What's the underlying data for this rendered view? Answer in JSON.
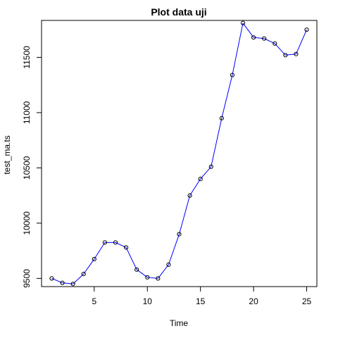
{
  "chart_data": {
    "type": "line",
    "title": "Plot data uji",
    "xlabel": "Time",
    "ylabel": "test_ma.ts",
    "xlim": [
      0.04,
      25.96
    ],
    "ylim": [
      9426,
      11834
    ],
    "x_ticks": [
      5,
      10,
      15,
      20,
      25
    ],
    "y_ticks": [
      9500,
      10000,
      10500,
      11000,
      11500
    ],
    "grid": false,
    "legend": "none",
    "series": [
      {
        "color": "#0000ff",
        "marker": "open-circle",
        "x": [
          1,
          2,
          3,
          4,
          5,
          6,
          7,
          8,
          9,
          10,
          11,
          12,
          13,
          14,
          15,
          16,
          17,
          18,
          19,
          20,
          21,
          22,
          23,
          24,
          25
        ],
        "values": [
          9500,
          9460,
          9450,
          9540,
          9675,
          9825,
          9825,
          9780,
          9580,
          9510,
          9500,
          9625,
          9900,
          10250,
          10400,
          10510,
          10950,
          11340,
          11810,
          11680,
          11670,
          11625,
          11520,
          11530,
          11750
        ]
      }
    ]
  }
}
